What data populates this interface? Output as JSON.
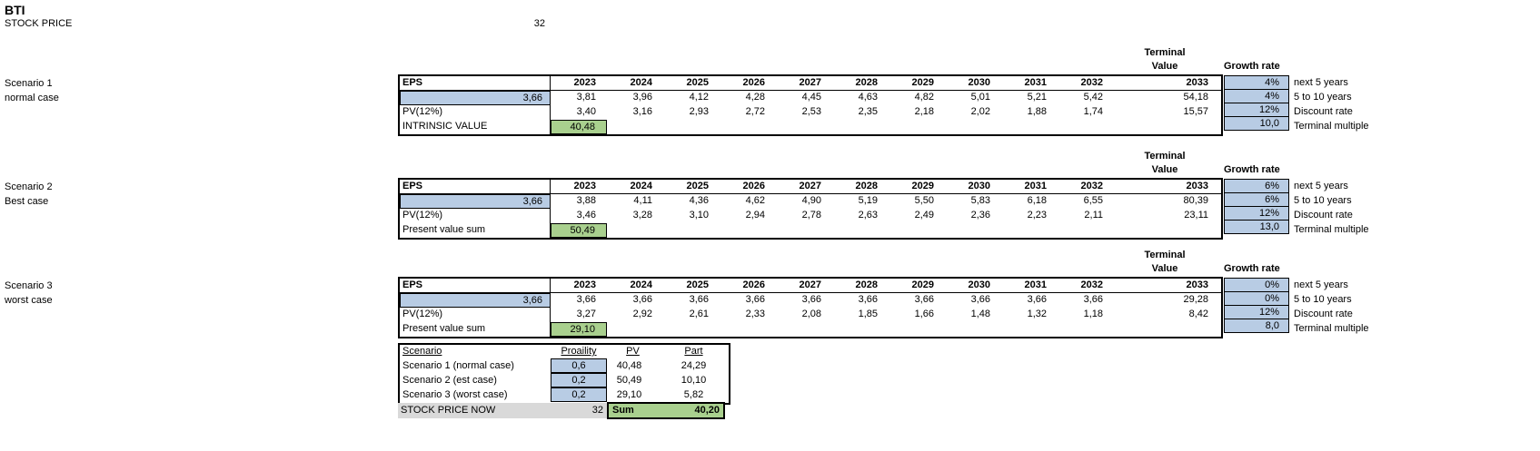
{
  "page": {
    "title": "BTI",
    "stock_price_label": "STOCK PRICE",
    "stock_price_value": "32"
  },
  "table_headers": {
    "eps": "EPS",
    "terminal_line1": "Terminal",
    "terminal_line2": "Value",
    "growth_rate": "Growth rate"
  },
  "years": [
    "2023",
    "2024",
    "2025",
    "2026",
    "2027",
    "2028",
    "2029",
    "2030",
    "2031",
    "2032",
    "2033"
  ],
  "scenarios": [
    {
      "name": "Scenario 1",
      "case_label": "normal case",
      "base_eps": "3,66",
      "eps_values": [
        "3,81",
        "3,96",
        "4,12",
        "4,28",
        "4,45",
        "4,63",
        "4,82",
        "5,01",
        "5,21",
        "5,42",
        "54,18"
      ],
      "pv_label": "PV(12%)",
      "pv_values": [
        "3,40",
        "3,16",
        "2,93",
        "2,72",
        "2,53",
        "2,35",
        "2,18",
        "2,02",
        "1,88",
        "1,74",
        "15,57"
      ],
      "result_label": "INTRINSIC VALUE",
      "result_value": "40,48",
      "params": [
        {
          "value": "4%",
          "label": "next 5 years"
        },
        {
          "value": "4%",
          "label": "5 to 10 years"
        },
        {
          "value": "12%",
          "label": "Discount rate"
        },
        {
          "value": "10,0",
          "label": "Terminal multiple"
        }
      ]
    },
    {
      "name": "Scenario 2",
      "case_label": "Best case",
      "base_eps": "3,66",
      "eps_values": [
        "3,88",
        "4,11",
        "4,36",
        "4,62",
        "4,90",
        "5,19",
        "5,50",
        "5,83",
        "6,18",
        "6,55",
        "80,39"
      ],
      "pv_label": "PV(12%)",
      "pv_values": [
        "3,46",
        "3,28",
        "3,10",
        "2,94",
        "2,78",
        "2,63",
        "2,49",
        "2,36",
        "2,23",
        "2,11",
        "23,11"
      ],
      "result_label": "Present value sum",
      "result_value": "50,49",
      "params": [
        {
          "value": "6%",
          "label": "next 5 years"
        },
        {
          "value": "6%",
          "label": "5 to 10 years"
        },
        {
          "value": "12%",
          "label": "Discount rate"
        },
        {
          "value": "13,0",
          "label": "Terminal multiple"
        }
      ]
    },
    {
      "name": "Scenario 3",
      "case_label": "worst case",
      "base_eps": "3,66",
      "eps_values": [
        "3,66",
        "3,66",
        "3,66",
        "3,66",
        "3,66",
        "3,66",
        "3,66",
        "3,66",
        "3,66",
        "3,66",
        "29,28"
      ],
      "pv_label": "PV(12%)",
      "pv_values": [
        "3,27",
        "2,92",
        "2,61",
        "2,33",
        "2,08",
        "1,85",
        "1,66",
        "1,48",
        "1,32",
        "1,18",
        "8,42"
      ],
      "result_label": "Present value sum",
      "result_value": "29,10",
      "params": [
        {
          "value": "0%",
          "label": "next 5 years"
        },
        {
          "value": "0%",
          "label": "5 to 10 years"
        },
        {
          "value": "12%",
          "label": "Discount rate"
        },
        {
          "value": "8,0",
          "label": "Terminal multiple"
        }
      ]
    }
  ],
  "summary": {
    "headers": [
      "Scenario",
      "Proaility",
      "PV",
      "Part"
    ],
    "rows": [
      {
        "label": "Scenario 1 (normal case)",
        "probability": "0,6",
        "pv": "40,48",
        "part": "24,29"
      },
      {
        "label": "Scenario 2 (est case)",
        "probability": "0,2",
        "pv": "50,49",
        "part": "10,10"
      },
      {
        "label": "Scenario 3 (worst case)",
        "probability": "0,2",
        "pv": "29,10",
        "part": "5,82"
      }
    ],
    "footer": {
      "label": "STOCK PRICE NOW",
      "value": "32",
      "sum_label": "Sum",
      "sum_value": "40,20"
    }
  },
  "colors": {
    "blue": "#b8cce4",
    "green": "#a9d08e",
    "gray": "#d9d9d9"
  }
}
